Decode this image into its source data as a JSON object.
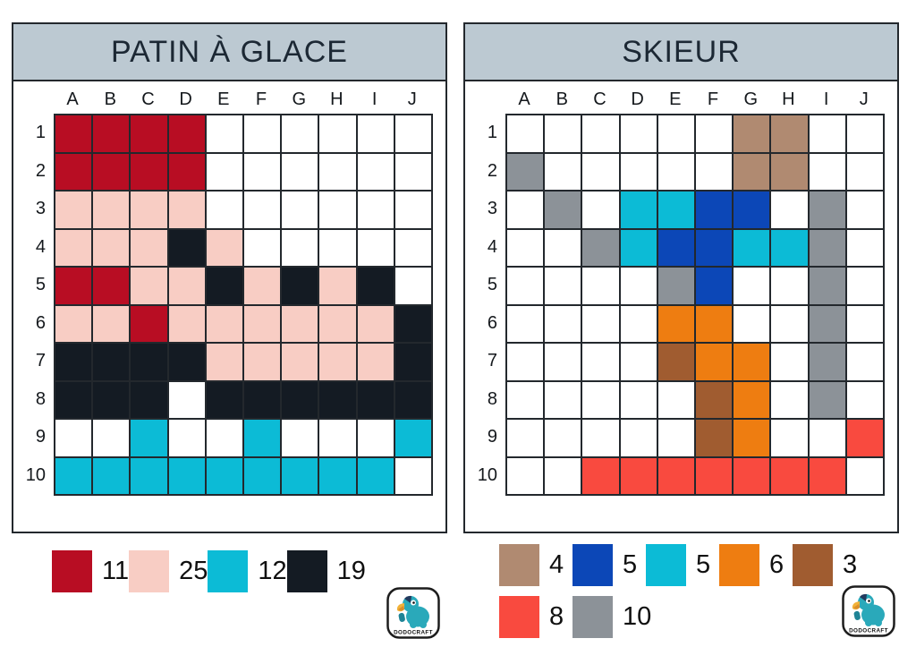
{
  "palette": {
    "R": "#b80d23",
    "P": "#f8cdc4",
    "C": "#0cbbd6",
    "K": "#141b23",
    "T": "#b08a71",
    "B": "#0c47b7",
    "O": "#ee7d11",
    "W": "#a05c30",
    "E": "#f94a3f",
    "G": "#8c9298"
  },
  "header_bg": "#bcc9d2",
  "panels": {
    "left": {
      "title": "PATIN À GLACE",
      "columns": [
        "A",
        "B",
        "C",
        "D",
        "E",
        "F",
        "G",
        "H",
        "I",
        "J"
      ],
      "row_labels": [
        "1",
        "2",
        "3",
        "4",
        "5",
        "6",
        "7",
        "8",
        "9",
        "10"
      ],
      "cells": [
        [
          "R",
          "R",
          "R",
          "R",
          "",
          "",
          "",
          "",
          "",
          ""
        ],
        [
          "R",
          "R",
          "R",
          "R",
          "",
          "",
          "",
          "",
          "",
          ""
        ],
        [
          "P",
          "P",
          "P",
          "P",
          "",
          "",
          "",
          "",
          "",
          ""
        ],
        [
          "P",
          "P",
          "P",
          "K",
          "P",
          "",
          "",
          "",
          "",
          ""
        ],
        [
          "R",
          "R",
          "P",
          "P",
          "K",
          "P",
          "K",
          "P",
          "K",
          ""
        ],
        [
          "P",
          "P",
          "R",
          "P",
          "P",
          "P",
          "P",
          "P",
          "P",
          "K"
        ],
        [
          "K",
          "K",
          "K",
          "K",
          "P",
          "P",
          "P",
          "P",
          "P",
          "K"
        ],
        [
          "K",
          "K",
          "K",
          "",
          "K",
          "K",
          "K",
          "K",
          "K",
          "K"
        ],
        [
          "",
          "",
          "C",
          "",
          "",
          "C",
          "",
          "",
          "",
          "C"
        ],
        [
          "C",
          "C",
          "C",
          "C",
          "C",
          "C",
          "C",
          "C",
          "C",
          ""
        ]
      ],
      "legend_rows": [
        [
          {
            "color_key": "R",
            "label": "11"
          },
          {
            "color_key": "P",
            "label": "25"
          },
          {
            "color_key": "C",
            "label": "12"
          },
          {
            "color_key": "K",
            "label": "19"
          }
        ]
      ]
    },
    "right": {
      "title": "SKIEUR",
      "columns": [
        "A",
        "B",
        "C",
        "D",
        "E",
        "F",
        "G",
        "H",
        "I",
        "J"
      ],
      "row_labels": [
        "1",
        "2",
        "3",
        "4",
        "5",
        "6",
        "7",
        "8",
        "9",
        "10"
      ],
      "cells": [
        [
          "",
          "",
          "",
          "",
          "",
          "",
          "T",
          "T",
          "",
          ""
        ],
        [
          "G",
          "",
          "",
          "",
          "",
          "",
          "T",
          "T",
          "",
          ""
        ],
        [
          "",
          "G",
          "",
          "C",
          "C",
          "B",
          "B",
          "",
          "G",
          ""
        ],
        [
          "",
          "",
          "G",
          "C",
          "B",
          "B",
          "C",
          "C",
          "G",
          ""
        ],
        [
          "",
          "",
          "",
          "",
          "G",
          "B",
          "",
          "",
          "G",
          ""
        ],
        [
          "",
          "",
          "",
          "",
          "O",
          "O",
          "",
          "",
          "G",
          ""
        ],
        [
          "",
          "",
          "",
          "",
          "W",
          "O",
          "O",
          "",
          "G",
          ""
        ],
        [
          "",
          "",
          "",
          "",
          "",
          "W",
          "O",
          "",
          "G",
          ""
        ],
        [
          "",
          "",
          "",
          "",
          "",
          "W",
          "O",
          "",
          "",
          "E"
        ],
        [
          "",
          "",
          "E",
          "E",
          "E",
          "E",
          "E",
          "E",
          "E",
          ""
        ]
      ],
      "legend_rows": [
        [
          {
            "color_key": "T",
            "label": "4"
          },
          {
            "color_key": "B",
            "label": "5"
          },
          {
            "color_key": "C",
            "label": "5"
          },
          {
            "color_key": "O",
            "label": "6"
          },
          {
            "color_key": "W",
            "label": "3"
          }
        ],
        [
          {
            "color_key": "E",
            "label": "8"
          },
          {
            "color_key": "G",
            "label": "10"
          }
        ]
      ]
    }
  },
  "logo": {
    "text": "DODOCRAFT"
  }
}
